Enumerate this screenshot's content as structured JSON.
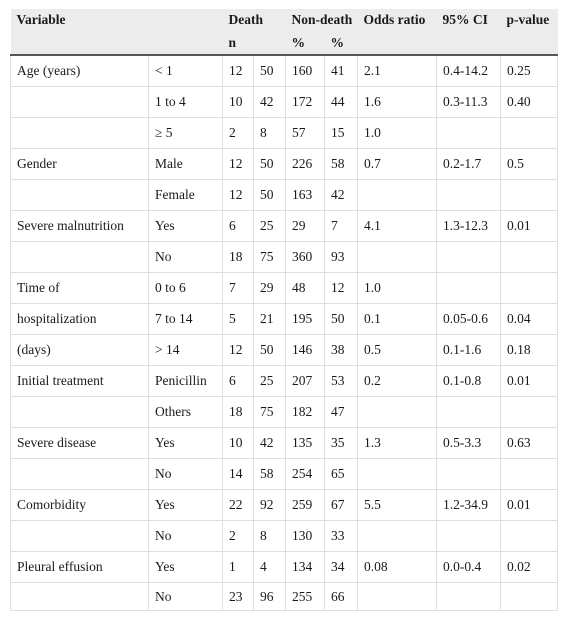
{
  "table": {
    "headers": {
      "variable": "Variable",
      "death": "Death",
      "non_death": "Non-death",
      "odds_ratio": "Odds ratio",
      "ci": "95% CI",
      "p_value": "p-value",
      "n": "n",
      "pct_death": "%",
      "pct_non_death": "%"
    },
    "rows": [
      {
        "variable": "Age (years)",
        "category": "< 1",
        "death_n": "12",
        "death_pct": "50",
        "nondeath_n": "160",
        "nondeath_pct": "41",
        "or": "2.1",
        "ci": "0.4-14.2",
        "p": "0.25"
      },
      {
        "variable": "",
        "category": "1 to 4",
        "death_n": "10",
        "death_pct": "42",
        "nondeath_n": "172",
        "nondeath_pct": "44",
        "or": "1.6",
        "ci": "0.3-11.3",
        "p": "0.40"
      },
      {
        "variable": "",
        "category": "≥ 5",
        "death_n": "2",
        "death_pct": "8",
        "nondeath_n": "57",
        "nondeath_pct": "15",
        "or": "1.0",
        "ci": "",
        "p": ""
      },
      {
        "variable": "Gender",
        "category": "Male",
        "death_n": "12",
        "death_pct": "50",
        "nondeath_n": "226",
        "nondeath_pct": "58",
        "or": "0.7",
        "ci": "0.2-1.7",
        "p": "0.5"
      },
      {
        "variable": "",
        "category": "Female",
        "death_n": "12",
        "death_pct": "50",
        "nondeath_n": "163",
        "nondeath_pct": "42",
        "or": "",
        "ci": "",
        "p": ""
      },
      {
        "variable": "Severe malnutrition",
        "category": "Yes",
        "death_n": "6",
        "death_pct": "25",
        "nondeath_n": "29",
        "nondeath_pct": "7",
        "or": "4.1",
        "ci": "1.3-12.3",
        "p": "0.01"
      },
      {
        "variable": "",
        "category": "No",
        "death_n": "18",
        "death_pct": "75",
        "nondeath_n": "360",
        "nondeath_pct": "93",
        "or": "",
        "ci": "",
        "p": ""
      },
      {
        "variable": "Time of",
        "category": "0 to 6",
        "death_n": "7",
        "death_pct": "29",
        "nondeath_n": "48",
        "nondeath_pct": "12",
        "or": "1.0",
        "ci": "",
        "p": ""
      },
      {
        "variable": "hospitalization",
        "category": "7 to 14",
        "death_n": "5",
        "death_pct": "21",
        "nondeath_n": "195",
        "nondeath_pct": "50",
        "or": "0.1",
        "ci": "0.05-0.6",
        "p": "0.04"
      },
      {
        "variable": "(days)",
        "category": "> 14",
        "death_n": "12",
        "death_pct": "50",
        "nondeath_n": "146",
        "nondeath_pct": "38",
        "or": "0.5",
        "ci": "0.1-1.6",
        "p": "0.18"
      },
      {
        "variable": "Initial treatment",
        "category": "Penicillin",
        "death_n": "6",
        "death_pct": "25",
        "nondeath_n": "207",
        "nondeath_pct": "53",
        "or": "0.2",
        "ci": "0.1-0.8",
        "p": "0.01"
      },
      {
        "variable": "",
        "category": "Others",
        "death_n": "18",
        "death_pct": "75",
        "nondeath_n": "182",
        "nondeath_pct": "47",
        "or": "",
        "ci": "",
        "p": ""
      },
      {
        "variable": "Severe disease",
        "category": "Yes",
        "death_n": "10",
        "death_pct": "42",
        "nondeath_n": "135",
        "nondeath_pct": "35",
        "or": "1.3",
        "ci": "0.5-3.3",
        "p": "0.63"
      },
      {
        "variable": "",
        "category": "No",
        "death_n": "14",
        "death_pct": "58",
        "nondeath_n": "254",
        "nondeath_pct": "65",
        "or": "",
        "ci": "",
        "p": ""
      },
      {
        "variable": "Comorbidity",
        "category": "Yes",
        "death_n": "22",
        "death_pct": "92",
        "nondeath_n": "259",
        "nondeath_pct": "67",
        "or": "5.5",
        "ci": "1.2-34.9",
        "p": "0.01"
      },
      {
        "variable": "",
        "category": "No",
        "death_n": "2",
        "death_pct": "8",
        "nondeath_n": "130",
        "nondeath_pct": "33",
        "or": "",
        "ci": "",
        "p": ""
      },
      {
        "variable": "Pleural effusion",
        "category": "Yes",
        "death_n": "1",
        "death_pct": "4",
        "nondeath_n": "134",
        "nondeath_pct": "34",
        "or": "0.08",
        "ci": "0.0-0.4",
        "p": "0.02"
      },
      {
        "variable": "",
        "category": "No",
        "death_n": "23",
        "death_pct": "96",
        "nondeath_n": "255",
        "nondeath_pct": "66",
        "or": "",
        "ci": "",
        "p": ""
      }
    ]
  }
}
